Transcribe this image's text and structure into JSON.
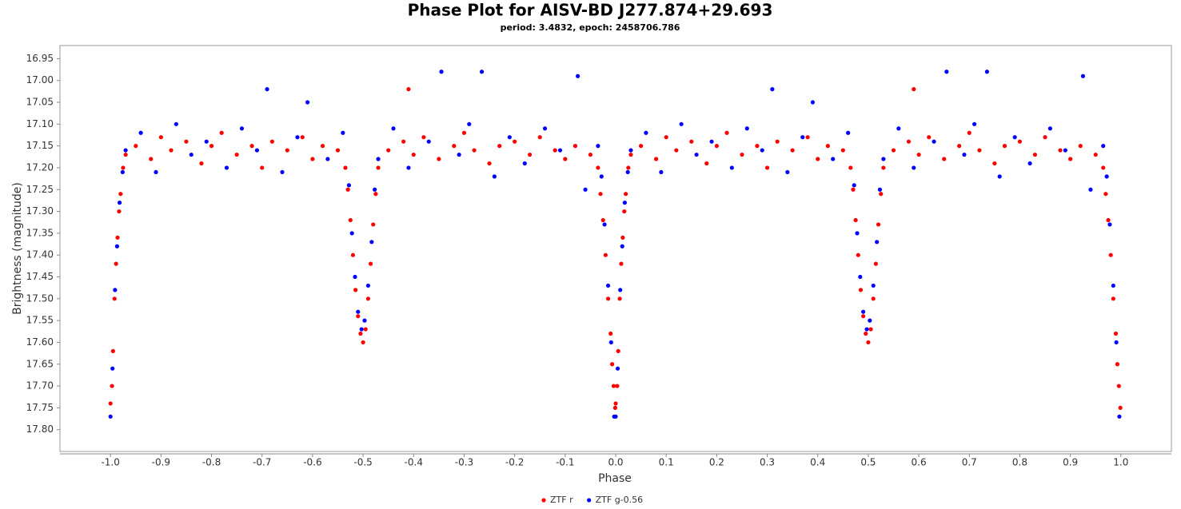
{
  "chart_data": {
    "type": "scatter",
    "title": "Phase Plot for AISV-BD J277.874+29.693",
    "subtitle": "period: 3.4832, epoch: 2458706.786",
    "x_label": "Phase",
    "y_label": "Brightness (magnitude)",
    "xlim": [
      -1.1,
      1.1
    ],
    "ylim": [
      17.85,
      16.92
    ],
    "xticks": [
      {
        "value": -1.0,
        "label": "-1.0"
      },
      -0.9,
      -0.8,
      -0.7,
      -0.6,
      -0.5,
      -0.4,
      -0.3,
      -0.2,
      -0.1,
      {
        "value": 0.0,
        "label": "0.0"
      },
      0.1,
      0.2,
      0.3,
      0.4,
      0.5,
      0.6,
      0.7,
      0.8,
      0.9,
      {
        "value": 1.0,
        "label": "1.0"
      }
    ],
    "yticks": [
      16.95,
      {
        "value": 17.0,
        "label": "17.00"
      },
      17.05,
      {
        "value": 17.1,
        "label": "17.10"
      },
      17.15,
      {
        "value": 17.2,
        "label": "17.20"
      },
      17.25,
      {
        "value": 17.3,
        "label": "17.30"
      },
      17.35,
      {
        "value": 17.4,
        "label": "17.40"
      },
      17.45,
      {
        "value": 17.5,
        "label": "17.50"
      },
      17.55,
      {
        "value": 17.6,
        "label": "17.60"
      },
      17.65,
      {
        "value": 17.7,
        "label": "17.70"
      },
      17.75,
      {
        "value": 17.8,
        "label": "17.80"
      }
    ],
    "grid": false,
    "legend": "bottom",
    "series": [
      {
        "name": "ZTF r",
        "color": "#ff0000",
        "x": [
          -1.0,
          -0.997,
          -0.995,
          -0.992,
          -0.989,
          -0.986,
          -0.983,
          -0.98,
          -0.975,
          -0.97,
          -0.95,
          -0.92,
          -0.9,
          -0.88,
          -0.85,
          -0.82,
          -0.8,
          -0.78,
          -0.75,
          -0.72,
          -0.7,
          -0.68,
          -0.65,
          -0.62,
          -0.6,
          -0.41,
          -0.58,
          -0.55,
          -0.535,
          -0.53,
          -0.525,
          -0.52,
          -0.515,
          -0.51,
          -0.505,
          -0.5,
          -0.495,
          -0.49,
          -0.485,
          -0.48,
          -0.475,
          -0.47,
          -0.45,
          -0.42,
          -0.4,
          -0.38,
          -0.35,
          -0.32,
          -0.3,
          -0.28,
          -0.25,
          -0.23,
          -0.2,
          -0.17,
          -0.15,
          -0.12,
          -0.1,
          -0.08,
          -0.05,
          -0.035,
          -0.03,
          -0.025,
          -0.02,
          -0.015,
          -0.01,
          -0.007,
          -0.004,
          -0.001,
          0.0,
          0.003,
          0.005,
          0.008,
          0.011,
          0.014,
          0.017,
          0.02,
          0.025,
          0.03,
          0.05,
          0.08,
          0.1,
          0.12,
          0.15,
          0.18,
          0.2,
          0.22,
          0.25,
          0.28,
          0.3,
          0.32,
          0.35,
          0.38,
          0.4,
          0.59,
          0.42,
          0.45,
          0.465,
          0.47,
          0.475,
          0.48,
          0.485,
          0.49,
          0.495,
          0.5,
          0.505,
          0.51,
          0.515,
          0.52,
          0.525,
          0.53,
          0.55,
          0.58,
          0.6,
          0.62,
          0.65,
          0.68,
          0.7,
          0.72,
          0.75,
          0.77,
          0.8,
          0.83,
          0.85,
          0.88,
          0.9,
          0.92,
          0.95,
          0.965,
          0.97,
          0.975,
          0.98,
          0.985,
          0.99,
          0.993,
          0.996,
          0.999
        ],
        "values": [
          17.74,
          17.7,
          17.62,
          17.5,
          17.42,
          17.36,
          17.3,
          17.26,
          17.2,
          17.17,
          17.15,
          17.18,
          17.13,
          17.16,
          17.14,
          17.19,
          17.15,
          17.12,
          17.17,
          17.15,
          17.2,
          17.14,
          17.16,
          17.13,
          17.18,
          17.02,
          17.15,
          17.16,
          17.2,
          17.25,
          17.32,
          17.4,
          17.48,
          17.54,
          17.58,
          17.6,
          17.57,
          17.5,
          17.42,
          17.33,
          17.26,
          17.2,
          17.16,
          17.14,
          17.17,
          17.13,
          17.18,
          17.15,
          17.12,
          17.16,
          17.19,
          17.15,
          17.14,
          17.17,
          17.13,
          17.16,
          17.18,
          17.15,
          17.17,
          17.2,
          17.26,
          17.32,
          17.4,
          17.5,
          17.58,
          17.65,
          17.7,
          17.75,
          17.74,
          17.7,
          17.62,
          17.5,
          17.42,
          17.36,
          17.3,
          17.26,
          17.2,
          17.17,
          17.15,
          17.18,
          17.13,
          17.16,
          17.14,
          17.19,
          17.15,
          17.12,
          17.17,
          17.15,
          17.2,
          17.14,
          17.16,
          17.13,
          17.18,
          17.02,
          17.15,
          17.16,
          17.2,
          17.25,
          17.32,
          17.4,
          17.48,
          17.54,
          17.58,
          17.6,
          17.57,
          17.5,
          17.42,
          17.33,
          17.26,
          17.2,
          17.16,
          17.14,
          17.17,
          17.13,
          17.18,
          17.15,
          17.12,
          17.16,
          17.19,
          17.15,
          17.14,
          17.17,
          17.13,
          17.16,
          17.18,
          17.15,
          17.17,
          17.2,
          17.26,
          17.32,
          17.4,
          17.5,
          17.58,
          17.65,
          17.7,
          17.75
        ]
      },
      {
        "name": "ZTF g-0.56",
        "color": "#0000ff",
        "x": [
          -1.0,
          -0.996,
          -0.991,
          -0.987,
          -0.982,
          -0.976,
          -0.97,
          -0.94,
          -0.91,
          -0.87,
          -0.84,
          -0.81,
          -0.77,
          -0.74,
          -0.71,
          -0.69,
          -0.66,
          -0.63,
          -0.61,
          -0.57,
          -0.54,
          -0.528,
          -0.522,
          -0.516,
          -0.51,
          -0.503,
          -0.497,
          -0.49,
          -0.483,
          -0.477,
          -0.47,
          -0.44,
          -0.41,
          -0.37,
          -0.345,
          -0.31,
          -0.29,
          -0.265,
          -0.24,
          -0.21,
          -0.18,
          -0.14,
          -0.11,
          -0.075,
          -0.06,
          -0.035,
          -0.028,
          -0.022,
          -0.015,
          -0.009,
          -0.003,
          0.0,
          0.004,
          0.009,
          0.013,
          0.018,
          0.024,
          0.03,
          0.06,
          0.09,
          0.13,
          0.16,
          0.19,
          0.23,
          0.26,
          0.29,
          0.31,
          0.34,
          0.37,
          0.39,
          0.43,
          0.46,
          0.472,
          0.478,
          0.484,
          0.49,
          0.497,
          0.503,
          0.51,
          0.517,
          0.523,
          0.53,
          0.56,
          0.59,
          0.63,
          0.655,
          0.69,
          0.71,
          0.735,
          0.76,
          0.79,
          0.82,
          0.86,
          0.89,
          0.925,
          0.94,
          0.965,
          0.972,
          0.978,
          0.985,
          0.991,
          0.997
        ],
        "values": [
          17.77,
          17.66,
          17.48,
          17.38,
          17.28,
          17.21,
          17.16,
          17.12,
          17.21,
          17.1,
          17.17,
          17.14,
          17.2,
          17.11,
          17.16,
          17.02,
          17.21,
          17.13,
          17.05,
          17.18,
          17.12,
          17.24,
          17.35,
          17.45,
          17.53,
          17.57,
          17.55,
          17.47,
          17.37,
          17.25,
          17.18,
          17.11,
          17.2,
          17.14,
          16.98,
          17.17,
          17.1,
          16.98,
          17.22,
          17.13,
          17.19,
          17.11,
          17.16,
          16.99,
          17.25,
          17.15,
          17.22,
          17.33,
          17.47,
          17.6,
          17.77,
          17.77,
          17.66,
          17.48,
          17.38,
          17.28,
          17.21,
          17.16,
          17.12,
          17.21,
          17.1,
          17.17,
          17.14,
          17.2,
          17.11,
          17.16,
          17.02,
          17.21,
          17.13,
          17.05,
          17.18,
          17.12,
          17.24,
          17.35,
          17.45,
          17.53,
          17.57,
          17.55,
          17.47,
          17.37,
          17.25,
          17.18,
          17.11,
          17.2,
          17.14,
          16.98,
          17.17,
          17.1,
          16.98,
          17.22,
          17.13,
          17.19,
          17.11,
          17.16,
          16.99,
          17.25,
          17.15,
          17.22,
          17.33,
          17.47,
          17.6,
          17.77
        ]
      }
    ]
  }
}
